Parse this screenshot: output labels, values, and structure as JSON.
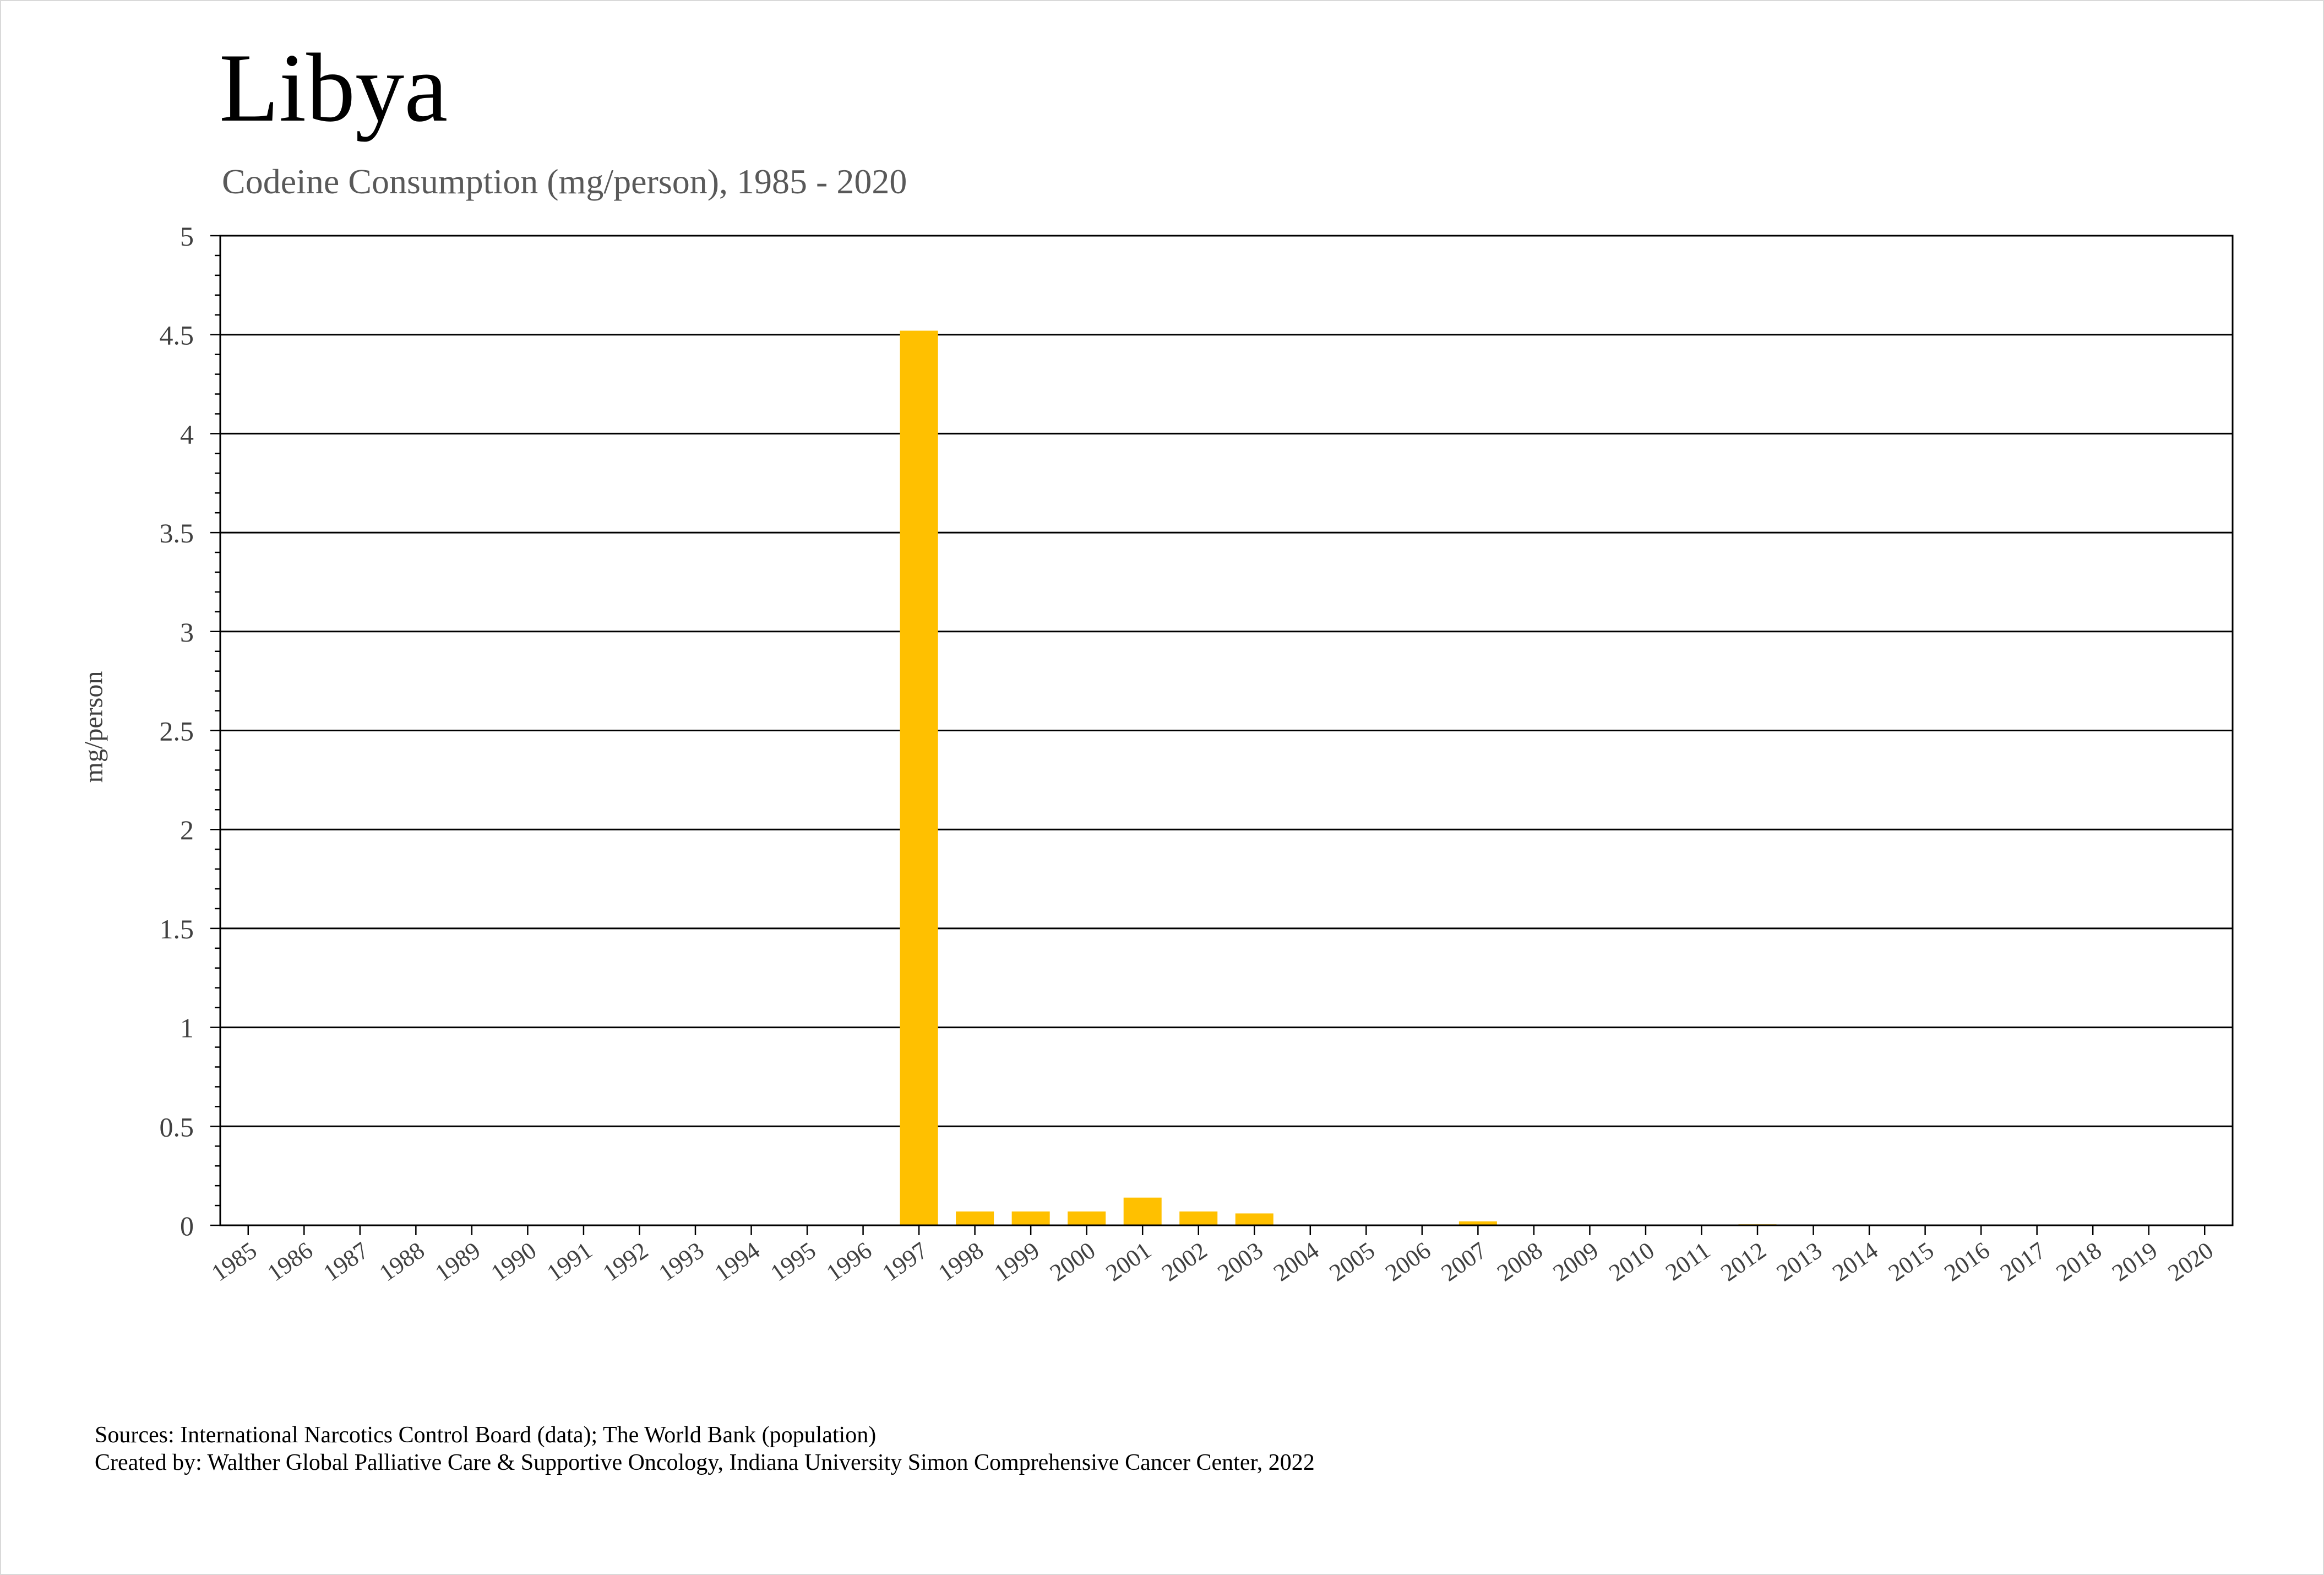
{
  "header": {
    "title": "Libya",
    "subtitle": "Codeine Consumption (mg/person), 1985 - 2020"
  },
  "footer": {
    "sources": "Sources: International Narcotics Control Board (data); The World Bank (population)",
    "created_by": "Created by: Walther Global Palliative Care & Supportive Oncology, Indiana University Simon Comprehensive Cancer Center, 2022"
  },
  "chart_data": {
    "type": "bar",
    "title": "Libya",
    "subtitle": "Codeine Consumption (mg/person), 1985 - 2020",
    "xlabel": "",
    "ylabel": "mg/person",
    "ylim": [
      0,
      5
    ],
    "yticks": [
      "0",
      "0.5",
      "1",
      "1.5",
      "2",
      "2.5",
      "3",
      "3.5",
      "4",
      "4.5",
      "5"
    ],
    "grid": true,
    "bar_color": "#FFC000",
    "categories": [
      "1985",
      "1986",
      "1987",
      "1988",
      "1989",
      "1990",
      "1991",
      "1992",
      "1993",
      "1994",
      "1995",
      "1996",
      "1997",
      "1998",
      "1999",
      "2000",
      "2001",
      "2002",
      "2003",
      "2004",
      "2005",
      "2006",
      "2007",
      "2008",
      "2009",
      "2010",
      "2011",
      "2012",
      "2013",
      "2014",
      "2015",
      "2016",
      "2017",
      "2018",
      "2019",
      "2020"
    ],
    "values": [
      0,
      0,
      0,
      0,
      0,
      0,
      0,
      0,
      0,
      0,
      0,
      0,
      4.52,
      0.07,
      0.07,
      0.07,
      0.14,
      0.07,
      0.06,
      0,
      0,
      0,
      0.02,
      0,
      0,
      0,
      0,
      0.005,
      0,
      0,
      0,
      0,
      0,
      0,
      0,
      0
    ]
  }
}
